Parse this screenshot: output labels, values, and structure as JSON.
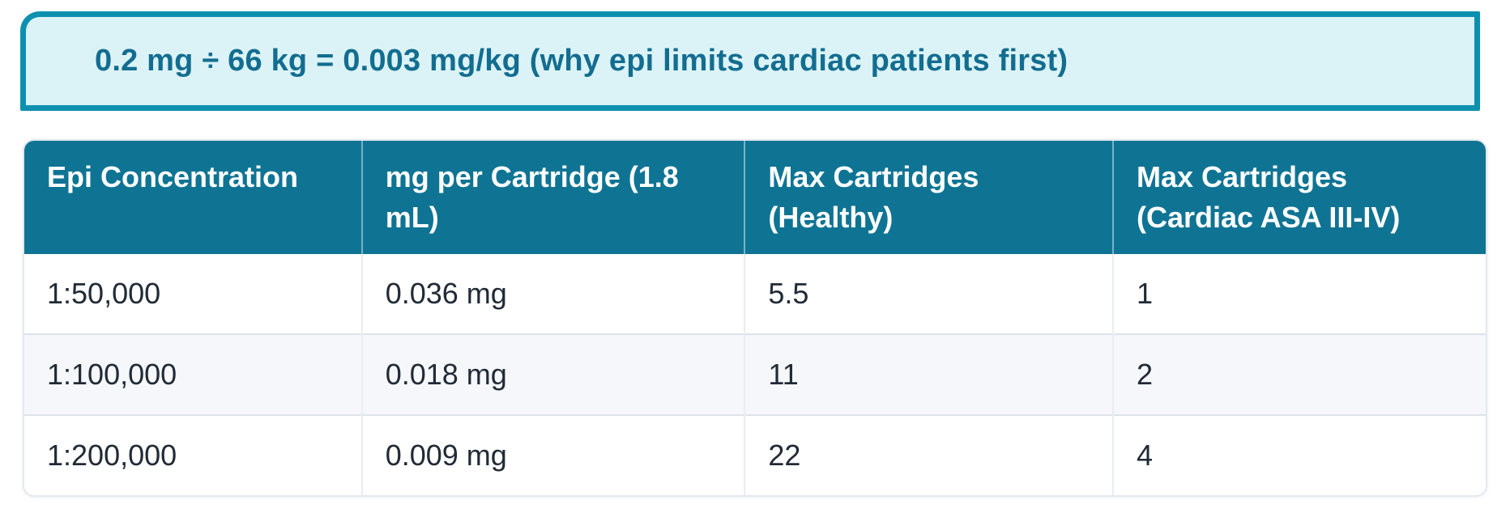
{
  "callout": {
    "text": "0.2 mg ÷ 66 kg = 0.003 mg/kg (why epi limits cardiac patients first)",
    "background_color": "#dbf3f7",
    "border_color": "#0d90b0",
    "text_color": "#136d90"
  },
  "table": {
    "header_background_color": "#0f7494",
    "header_text_color": "#ffffff",
    "body_text_color": "#212b36",
    "alt_row_background_color": "#f5f7fa",
    "columns": [
      {
        "label": "Epi Concentration"
      },
      {
        "label": "mg per Cartridge (1.8 mL)"
      },
      {
        "label": "Max Cartridges (Healthy)"
      },
      {
        "label": "Max Cartridges (Cardiac ASA III-IV)"
      }
    ],
    "rows": [
      {
        "cells": [
          "1:50,000",
          "0.036 mg",
          "5.5",
          "1"
        ]
      },
      {
        "cells": [
          "1:100,000",
          "0.018 mg",
          "11",
          "2"
        ]
      },
      {
        "cells": [
          "1:200,000",
          "0.009 mg",
          "22",
          "4"
        ]
      }
    ]
  }
}
